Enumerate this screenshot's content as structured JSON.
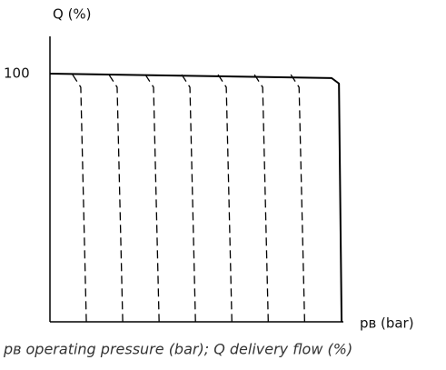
{
  "chart_data": {
    "type": "line",
    "ylabel": "Q (%)",
    "xlabel": "pʙ (bar)",
    "caption": "pʙ operating pressure (bar); Q delivery flow (%)",
    "xlim": [
      0,
      100
    ],
    "ylim": [
      0,
      115
    ],
    "yticks": [
      100
    ],
    "grid": false,
    "series": [
      {
        "style": "solid",
        "color": "#000000",
        "x": [
          0,
          96,
          98.5,
          99.4
        ],
        "values": [
          100,
          98.2,
          96,
          0
        ]
      },
      {
        "style": "dashed",
        "color": "#000000",
        "x": [
          7.7,
          10.5,
          12.4
        ],
        "values": [
          99.6,
          94.5,
          0
        ]
      },
      {
        "style": "dashed",
        "color": "#000000",
        "x": [
          20.1,
          22.9,
          24.8
        ],
        "values": [
          99.6,
          94.5,
          0
        ]
      },
      {
        "style": "dashed",
        "color": "#000000",
        "x": [
          32.5,
          35.3,
          37.2
        ],
        "values": [
          99.6,
          94.5,
          0
        ]
      },
      {
        "style": "dashed",
        "color": "#000000",
        "x": [
          44.9,
          47.7,
          49.6
        ],
        "values": [
          99.6,
          94.5,
          0
        ]
      },
      {
        "style": "dashed",
        "color": "#000000",
        "x": [
          57.3,
          60.1,
          62.0
        ],
        "values": [
          99.6,
          94.5,
          0
        ]
      },
      {
        "style": "dashed",
        "color": "#000000",
        "x": [
          69.7,
          72.5,
          74.4
        ],
        "values": [
          99.6,
          94.5,
          0
        ]
      },
      {
        "style": "dashed",
        "color": "#000000",
        "x": [
          82.1,
          84.9,
          86.8
        ],
        "values": [
          99.6,
          94.5,
          0
        ]
      }
    ]
  }
}
